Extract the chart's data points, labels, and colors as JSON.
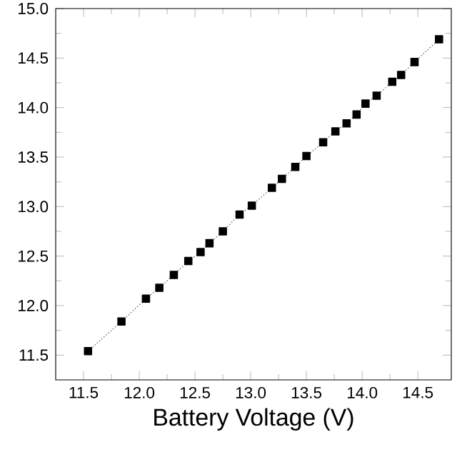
{
  "chart_data": {
    "type": "line",
    "xlabel": "Battery Voltage (V)",
    "x": [
      11.54,
      11.84,
      12.06,
      12.18,
      12.31,
      12.44,
      12.55,
      12.63,
      12.75,
      12.9,
      13.01,
      13.19,
      13.28,
      13.4,
      13.5,
      13.65,
      13.76,
      13.86,
      13.95,
      14.03,
      14.13,
      14.27,
      14.35,
      14.47,
      14.69
    ],
    "series": [
      {
        "color": "#000000",
        "values": [
          11.54,
          11.84,
          12.07,
          12.18,
          12.31,
          12.45,
          12.54,
          12.63,
          12.75,
          12.92,
          13.01,
          13.19,
          13.28,
          13.4,
          13.51,
          13.65,
          13.76,
          13.84,
          13.93,
          14.04,
          14.12,
          14.26,
          14.33,
          14.46,
          14.69
        ]
      }
    ],
    "xlim": [
      11.25,
      14.8
    ],
    "ylim": [
      11.25,
      15.0
    ],
    "xticks": [
      11.5,
      {
        "value": 12,
        "label": "12.0"
      },
      12.5,
      {
        "value": 13,
        "label": "13.0"
      },
      13.5,
      {
        "value": 14,
        "label": "14.0"
      },
      14.5
    ],
    "yticks": [
      11.5,
      {
        "value": 12,
        "label": "12.0"
      },
      12.5,
      {
        "value": 13,
        "label": "13.0"
      },
      13.5,
      {
        "value": 14,
        "label": "14.0"
      },
      14.5,
      {
        "value": 15,
        "label": "15.0"
      }
    ],
    "marker": "square",
    "line_style": "dotted"
  }
}
